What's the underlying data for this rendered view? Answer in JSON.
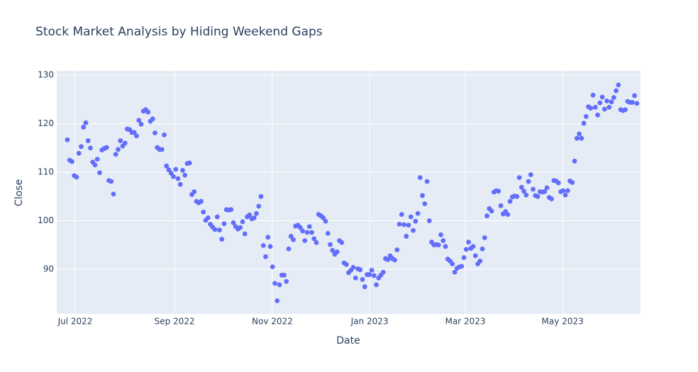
{
  "chart_data": {
    "type": "scatter",
    "title": "Stock Market Analysis by Hiding Weekend Gaps",
    "xlabel": "Date",
    "ylabel": "Close",
    "color": "#636efa",
    "grid": true,
    "values": [
      116.7,
      112.5,
      112.2,
      109.3,
      109.0,
      113.9,
      115.3,
      119.3,
      120.2,
      116.5,
      115.0,
      112.1,
      111.5,
      112.7,
      109.9,
      114.6,
      114.9,
      115.1,
      108.3,
      108.1,
      105.5,
      113.7,
      114.7,
      116.5,
      115.4,
      116.0,
      118.9,
      118.8,
      118.2,
      118.2,
      117.5,
      120.7,
      119.9,
      122.6,
      122.9,
      122.4,
      120.5,
      121.0,
      118.1,
      115.1,
      114.7,
      114.7,
      117.7,
      111.3,
      110.5,
      109.8,
      109.1,
      110.6,
      108.7,
      107.5,
      110.4,
      109.4,
      111.8,
      111.9,
      105.4,
      106.0,
      104.0,
      103.7,
      104.0,
      101.8,
      100.1,
      100.6,
      99.3,
      98.7,
      98.2,
      100.8,
      98.1,
      96.2,
      99.4,
      102.3,
      102.2,
      102.3,
      99.6,
      98.8,
      98.3,
      98.6,
      99.8,
      97.3,
      100.8,
      101.2,
      100.4,
      100.6,
      101.5,
      103.0,
      105.0,
      94.9,
      92.6,
      96.6,
      94.7,
      90.5,
      87.1,
      83.5,
      86.8,
      88.8,
      88.8,
      87.5,
      94.2,
      96.8,
      96.1,
      98.9,
      99.1,
      98.6,
      97.9,
      95.9,
      97.6,
      98.8,
      97.6,
      96.3,
      95.5,
      101.3,
      101.0,
      100.6,
      99.9,
      97.4,
      95.1,
      93.9,
      93.1,
      93.6,
      95.9,
      95.5,
      91.3,
      91.0,
      89.3,
      89.8,
      90.4,
      88.2,
      90.1,
      89.9,
      87.9,
      86.4,
      88.9,
      88.9,
      89.8,
      88.7,
      86.8,
      88.2,
      88.8,
      89.4,
      92.2,
      92.0,
      92.8,
      92.2,
      91.9,
      94.0,
      99.3,
      101.3,
      99.2,
      96.8,
      99.1,
      100.8,
      98.0,
      99.9,
      101.5,
      108.9,
      105.2,
      103.5,
      108.1,
      100.0,
      95.6,
      95.0,
      95.1,
      95.0,
      97.1,
      95.9,
      94.7,
      92.1,
      91.7,
      91.1,
      89.4,
      90.2,
      90.5,
      90.6,
      92.4,
      94.1,
      95.6,
      94.3,
      94.7,
      92.8,
      91.1,
      91.7,
      94.2,
      96.5,
      101.0,
      102.5,
      102.0,
      105.9,
      106.2,
      106.1,
      103.1,
      101.4,
      101.9,
      101.3,
      104.0,
      104.9,
      105.1,
      105.0,
      108.9,
      106.9,
      106.1,
      105.3,
      108.1,
      109.5,
      106.5,
      105.2,
      105.0,
      106.0,
      105.9,
      106.0,
      106.8,
      104.8,
      104.5,
      108.3,
      108.2,
      107.8,
      106.0,
      106.2,
      105.3,
      106.2,
      108.2,
      107.9,
      112.3,
      117.0,
      117.9,
      117.0,
      120.1,
      121.5,
      123.5,
      123.2,
      125.9,
      123.4,
      121.8,
      124.3,
      125.5,
      123.0,
      124.7,
      123.4,
      124.5,
      125.4,
      126.8,
      128.0,
      122.9,
      122.7,
      122.9,
      124.6,
      124.4,
      124.4,
      125.8,
      124.2
    ],
    "xlim": [
      -4.6,
      248.6
    ],
    "xticks": [
      {
        "value": 3.4,
        "label": "Jul 2022"
      },
      {
        "value": 46.5,
        "label": "Sep 2022"
      },
      {
        "value": 88.9,
        "label": "Nov 2022"
      },
      {
        "value": 131.1,
        "label": "Jan 2023"
      },
      {
        "value": 172.6,
        "label": "Mar 2023"
      },
      {
        "value": 214.8,
        "label": "May 2023"
      }
    ],
    "ylim": [
      80.8,
      130.9
    ],
    "yticks": [
      90,
      100,
      110,
      120,
      130
    ]
  }
}
